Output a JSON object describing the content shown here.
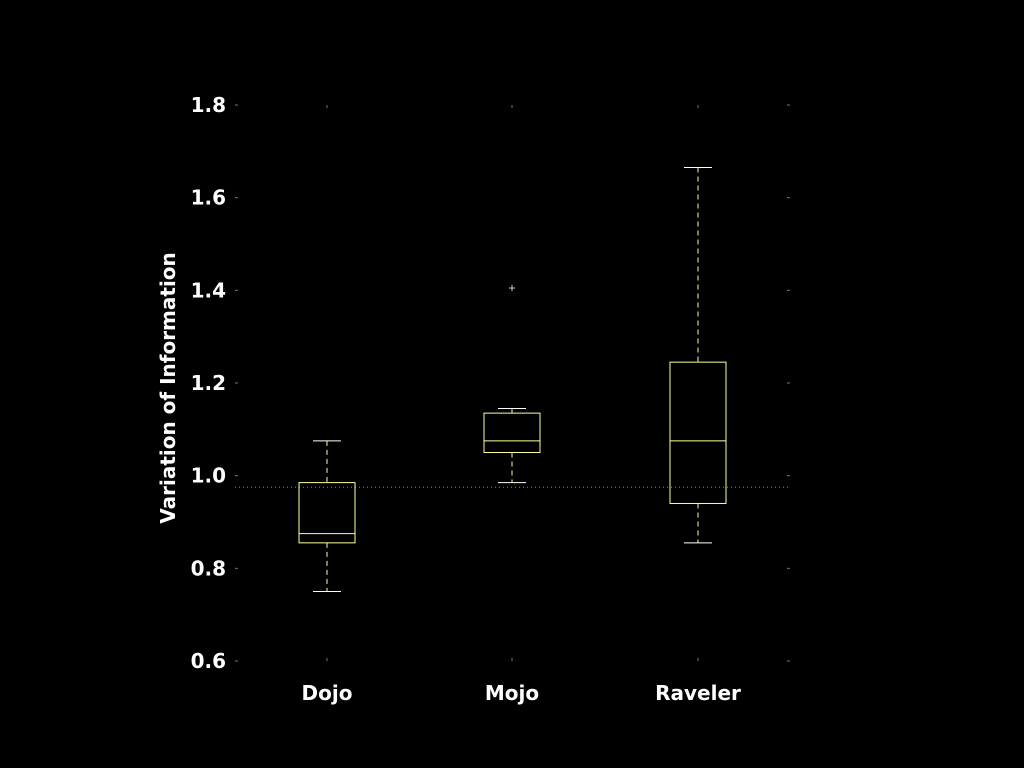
{
  "chart_data": {
    "type": "boxplot",
    "ylabel": "Variation of Information",
    "xlabel": "",
    "ylim": [
      0.6,
      1.8
    ],
    "yticks": [
      "0.6",
      "0.8",
      "1.0",
      "1.2",
      "1.4",
      "1.6",
      "1.8"
    ],
    "categories": [
      "Dojo",
      "Mojo",
      "Raveler"
    ],
    "boxes": [
      {
        "name": "Dojo",
        "whisker_low": 0.75,
        "q1": 0.855,
        "median": 0.875,
        "q3": 0.985,
        "whisker_high": 1.075,
        "outliers": []
      },
      {
        "name": "Mojo",
        "whisker_low": 0.985,
        "q1": 1.05,
        "median": 1.075,
        "q3": 1.135,
        "whisker_high": 1.145,
        "outliers": [
          1.405
        ]
      },
      {
        "name": "Raveler",
        "whisker_low": 0.855,
        "q1": 0.94,
        "median": 1.075,
        "q3": 1.245,
        "whisker_high": 1.665,
        "outliers": []
      }
    ],
    "reference_line": 0.975,
    "colors": {
      "background": "#000000",
      "box": "#ffff99",
      "median": "#ffff99",
      "reference": "#888888",
      "text": "#ffffff"
    }
  }
}
